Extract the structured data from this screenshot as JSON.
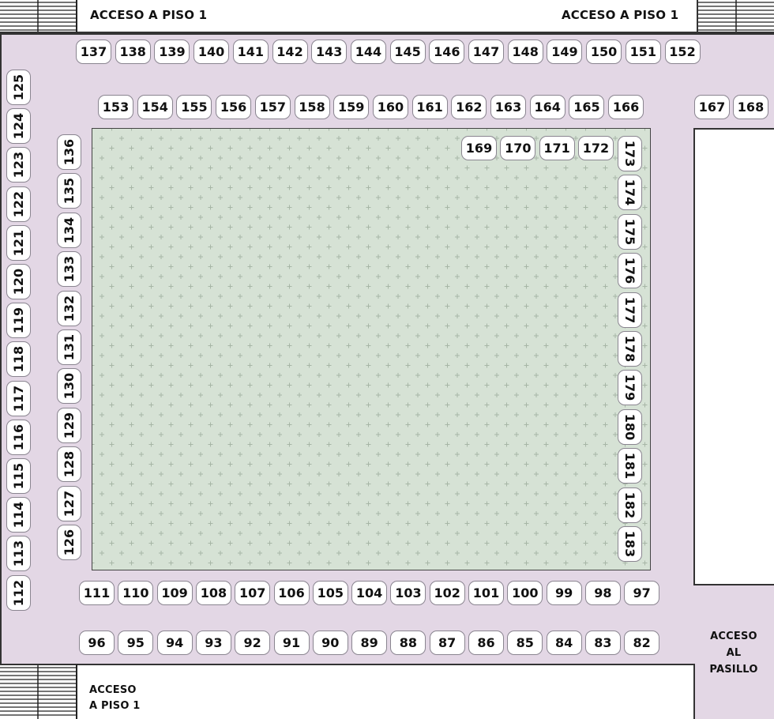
{
  "colors": {
    "aisle": "#e3d7e5",
    "floor": "#d6e2d5",
    "stand_border": "#8a8590",
    "stand_fill": "#ffffff"
  },
  "labels": {
    "top_left": "ACCESO A PISO 1",
    "top_right": "ACCESO A PISO 1",
    "bottom_left": [
      "ACCESO",
      "A PISO 1"
    ],
    "bottom_right": [
      "ACCESO",
      "AL",
      "PASILLO"
    ]
  },
  "stands": {
    "top_row": [
      "137",
      "138",
      "139",
      "140",
      "141",
      "142",
      "143",
      "144",
      "145",
      "146",
      "147",
      "148",
      "149",
      "150",
      "151",
      "152"
    ],
    "second_row": [
      "153",
      "154",
      "155",
      "156",
      "157",
      "158",
      "159",
      "160",
      "161",
      "162",
      "163",
      "164",
      "165",
      "166"
    ],
    "right_pair": [
      "167",
      "168"
    ],
    "left_outer_col": [
      "125",
      "124",
      "123",
      "122",
      "121",
      "120",
      "119",
      "118",
      "117",
      "116",
      "115",
      "114",
      "113",
      "112"
    ],
    "left_inner_col": [
      "136",
      "135",
      "134",
      "133",
      "132",
      "131",
      "130",
      "129",
      "128",
      "127",
      "126"
    ],
    "inner_top_row": [
      "169",
      "170",
      "171",
      "172"
    ],
    "right_inner_col": [
      "173",
      "174",
      "175",
      "176",
      "177",
      "178",
      "179",
      "180",
      "181",
      "182",
      "183"
    ],
    "bottom_inner_row": [
      "111",
      "110",
      "109",
      "108",
      "107",
      "106",
      "105",
      "104",
      "103",
      "102",
      "101",
      "100",
      "99",
      "98",
      "97"
    ],
    "bottom_outer_row": [
      "96",
      "95",
      "94",
      "93",
      "92",
      "91",
      "90",
      "89",
      "88",
      "87",
      "86",
      "85",
      "84",
      "83",
      "82"
    ]
  }
}
